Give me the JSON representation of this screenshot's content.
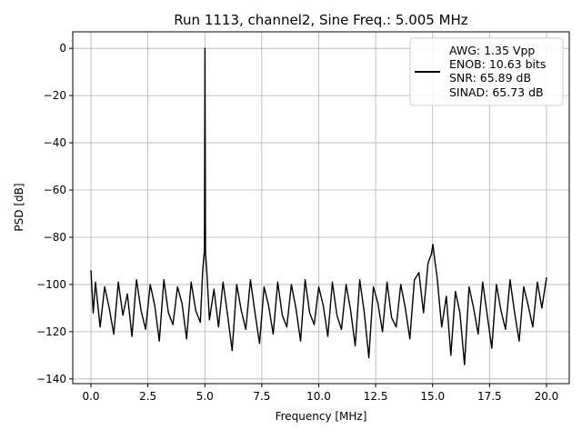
{
  "chart_data": {
    "type": "line",
    "title": "Run 1113, channel2, Sine Freq.: 5.005 MHz",
    "xlabel": "Frequency [MHz]",
    "ylabel": "PSD [dB]",
    "xlim": [
      -0.8,
      21.0
    ],
    "ylim": [
      -142,
      7
    ],
    "xticks": [
      0.0,
      2.5,
      5.0,
      7.5,
      10.0,
      12.5,
      15.0,
      17.5,
      20.0
    ],
    "xtick_labels": [
      "0.0",
      "2.5",
      "5.0",
      "7.5",
      "10.0",
      "12.5",
      "15.0",
      "17.5",
      "20.0"
    ],
    "yticks": [
      0,
      -20,
      -40,
      -60,
      -80,
      -100,
      -120,
      -140
    ],
    "ytick_labels": [
      "0",
      "−20",
      "−40",
      "−60",
      "−80",
      "−100",
      "−120",
      "−140"
    ],
    "grid": true,
    "legend_position": "top-right",
    "legend_lines": [
      "AWG: 1.35 Vpp",
      "ENOB: 10.63 bits",
      "SNR: 65.89 dB",
      "SINAD: 65.73 dB"
    ],
    "series": [
      {
        "color": "#000000",
        "x": [
          0.0,
          0.1,
          0.2,
          0.4,
          0.6,
          0.8,
          1.0,
          1.2,
          1.4,
          1.6,
          1.8,
          2.0,
          2.2,
          2.4,
          2.6,
          2.8,
          3.0,
          3.2,
          3.4,
          3.6,
          3.8,
          4.0,
          4.2,
          4.4,
          4.6,
          4.8,
          4.9,
          4.95,
          4.98,
          5.005,
          5.03,
          5.06,
          5.1,
          5.2,
          5.4,
          5.6,
          5.8,
          6.0,
          6.2,
          6.4,
          6.6,
          6.8,
          7.0,
          7.2,
          7.4,
          7.6,
          7.8,
          8.0,
          8.2,
          8.4,
          8.6,
          8.8,
          9.0,
          9.2,
          9.4,
          9.6,
          9.8,
          10.0,
          10.2,
          10.4,
          10.6,
          10.8,
          11.0,
          11.2,
          11.4,
          11.6,
          11.8,
          12.0,
          12.2,
          12.4,
          12.6,
          12.8,
          13.0,
          13.2,
          13.4,
          13.6,
          13.8,
          14.0,
          14.2,
          14.4,
          14.6,
          14.8,
          14.95,
          15.01,
          15.1,
          15.2,
          15.4,
          15.6,
          15.8,
          16.0,
          16.2,
          16.4,
          16.6,
          16.8,
          17.0,
          17.2,
          17.4,
          17.6,
          17.8,
          18.0,
          18.2,
          18.4,
          18.6,
          18.8,
          19.0,
          19.2,
          19.4,
          19.6,
          19.8,
          20.0
        ],
        "y": [
          -94,
          -112,
          -99,
          -118,
          -101,
          -110,
          -121,
          -99,
          -113,
          -104,
          -122,
          -98,
          -111,
          -119,
          -100,
          -109,
          -124,
          -98,
          -112,
          -117,
          -101,
          -108,
          -123,
          -99,
          -111,
          -116,
          -95,
          -89,
          -86,
          0,
          -87,
          -91,
          -97,
          -115,
          -102,
          -118,
          -99,
          -113,
          -128,
          -100,
          -111,
          -119,
          -98,
          -112,
          -125,
          -101,
          -109,
          -121,
          -99,
          -113,
          -118,
          -100,
          -110,
          -124,
          -98,
          -112,
          -117,
          -101,
          -109,
          -122,
          -99,
          -113,
          -119,
          -100,
          -111,
          -126,
          -98,
          -112,
          -131,
          -101,
          -108,
          -120,
          -99,
          -114,
          -118,
          -100,
          -110,
          -123,
          -98,
          -95,
          -112,
          -91,
          -87,
          -83,
          -90,
          -97,
          -118,
          -105,
          -130,
          -103,
          -112,
          -134,
          -101,
          -110,
          -121,
          -99,
          -113,
          -127,
          -100,
          -111,
          -119,
          -98,
          -112,
          -124,
          -101,
          -109,
          -118,
          -99,
          -110,
          -97
        ]
      }
    ]
  }
}
